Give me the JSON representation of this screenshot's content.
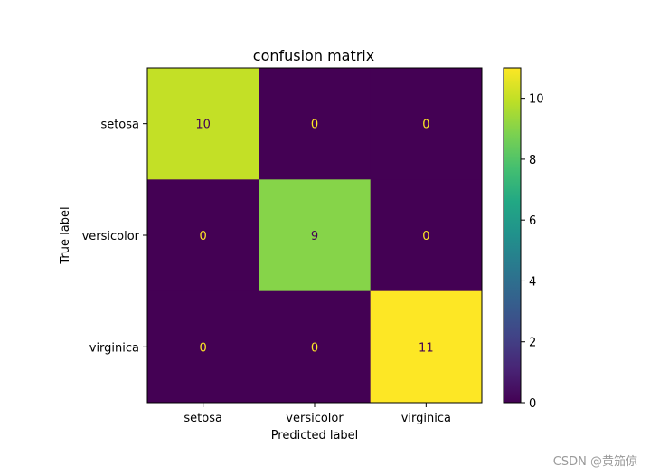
{
  "chart_data": {
    "type": "heatmap",
    "title": "confusion matrix",
    "xlabel": "Predicted label",
    "ylabel": "True label",
    "x_categories": [
      "setosa",
      "versicolor",
      "virginica"
    ],
    "y_categories": [
      "setosa",
      "versicolor",
      "virginica"
    ],
    "values": [
      [
        10,
        0,
        0
      ],
      [
        0,
        9,
        0
      ],
      [
        0,
        0,
        11
      ]
    ],
    "colormap": "viridis",
    "vmin": 0,
    "vmax": 11,
    "colorbar_ticks": [
      0,
      2,
      4,
      6,
      8,
      10
    ],
    "text_color_dark": "#440154",
    "text_color_light": "#fde725"
  },
  "watermark": "CSDN @黄笳倞"
}
